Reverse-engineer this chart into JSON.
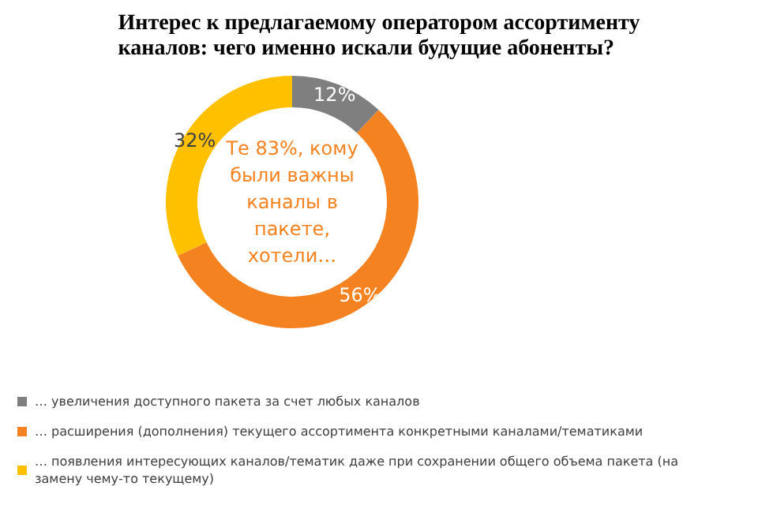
{
  "chart_data": {
    "type": "donut",
    "title": "Интерес к предлагаемому оператором ассортименту каналов: чего именно искали будущие абоненты?",
    "categories": [
      "… увеличения доступного пакета за счет любых каналов",
      "… расширения (дополнения) текущего ассортимента конкретными каналами/тематиками",
      "… появления интересующих каналов/тематик даже при сохранении общего объема пакета (на замену чему-то текущему)"
    ],
    "values": [
      12,
      56,
      32
    ],
    "colors": [
      "#7f7f7f",
      "#f58220",
      "#ffc000"
    ],
    "value_labels": [
      "12%",
      "56%",
      "32%"
    ],
    "annotations": [
      "Те 83%, кому были важны каналы в пакете, хотели…"
    ],
    "legend": "bottom"
  }
}
